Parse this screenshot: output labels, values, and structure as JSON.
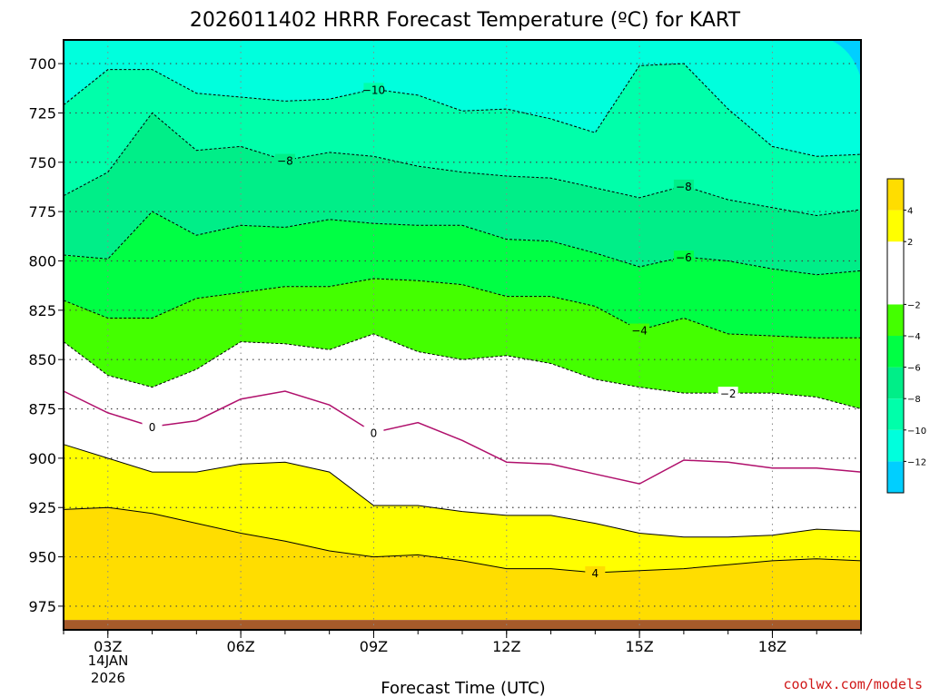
{
  "chart_data": {
    "type": "heatmap",
    "title": "2026011402 HRRR Forecast Temperature (ºC) for KART",
    "xlabel": "Forecast Time (UTC)",
    "credit": "coolwx.com/models",
    "x_range_hours": [
      2,
      20
    ],
    "x_ticks": [
      {
        "hour": 3,
        "label": "03Z"
      },
      {
        "hour": 6,
        "label": "06Z"
      },
      {
        "hour": 9,
        "label": "09Z"
      },
      {
        "hour": 12,
        "label": "12Z"
      },
      {
        "hour": 15,
        "label": "15Z"
      },
      {
        "hour": 18,
        "label": "18Z"
      }
    ],
    "date_label": [
      "14JAN",
      "2026"
    ],
    "y_ticks_hpa": [
      700,
      725,
      750,
      775,
      800,
      825,
      850,
      875,
      900,
      925,
      950,
      975
    ],
    "y_range_hpa": [
      688,
      987
    ],
    "ground_level_hpa": 982,
    "hours": [
      2,
      3,
      4,
      5,
      6,
      7,
      8,
      9,
      10,
      11,
      12,
      13,
      14,
      15,
      16,
      17,
      18,
      19,
      20
    ],
    "contours": [
      {
        "level": 4,
        "style": "solid",
        "color": "#000000",
        "label_at_hour": 14,
        "p": [
          926,
          925,
          928,
          933,
          938,
          942,
          947,
          950,
          949,
          952,
          956,
          956,
          958,
          957,
          956,
          954,
          952,
          951,
          952
        ]
      },
      {
        "level": 2,
        "style": "solid",
        "color": "#000000",
        "p": [
          893,
          900,
          907,
          907,
          903,
          902,
          907,
          924,
          924,
          927,
          929,
          929,
          933,
          938,
          940,
          940,
          939,
          936,
          937
        ]
      },
      {
        "level": 0,
        "style": "solid",
        "color": "#b0106c",
        "label_at_hour": [
          4,
          9
        ],
        "p": [
          866,
          877,
          884,
          881,
          870,
          866,
          873,
          887,
          882,
          891,
          902,
          903,
          908,
          913,
          901,
          902,
          905,
          905,
          907
        ]
      },
      {
        "level": -2,
        "style": "dashed",
        "color": "#000000",
        "label_at_hour": 17,
        "p": [
          841,
          858,
          864,
          855,
          841,
          842,
          845,
          837,
          846,
          850,
          848,
          852,
          860,
          864,
          867,
          867,
          867,
          869,
          875
        ]
      },
      {
        "level": -4,
        "style": "dashed",
        "color": "#000000",
        "label_at_hour": 15,
        "p": [
          820,
          829,
          829,
          819,
          816,
          813,
          813,
          809,
          810,
          812,
          818,
          818,
          823,
          835,
          829,
          837,
          838,
          839,
          839
        ]
      },
      {
        "level": -6,
        "style": "dashed",
        "color": "#000000",
        "label_at_hour": 16,
        "p": [
          797,
          799,
          775,
          787,
          782,
          783,
          779,
          781,
          782,
          782,
          789,
          790,
          796,
          803,
          798,
          800,
          804,
          807,
          805
        ]
      },
      {
        "level": -8,
        "style": "dashed",
        "color": "#000000",
        "label_at_hour": [
          7,
          16
        ],
        "p": [
          767,
          755,
          725,
          744,
          742,
          749,
          745,
          747,
          752,
          755,
          757,
          758,
          763,
          768,
          762,
          769,
          773,
          777,
          774
        ]
      },
      {
        "level": -10,
        "style": "dashed",
        "color": "#000000",
        "label_at_hour": 9,
        "p": [
          721,
          703,
          703,
          715,
          717,
          719,
          718,
          713,
          716,
          724,
          723,
          728,
          735,
          701,
          700,
          723,
          742,
          747,
          746
        ]
      },
      {
        "level": -12,
        "style": "dashed",
        "color": "#000000",
        "p": [
          688,
          688,
          688,
          688,
          688,
          688,
          688,
          688,
          688,
          688,
          688,
          688,
          688,
          688,
          688,
          688,
          688,
          688,
          688
        ]
      }
    ],
    "colorbar": {
      "min": -14,
      "max": 6,
      "bands": [
        {
          "from": -14,
          "to": -12,
          "color": "#00cfff"
        },
        {
          "from": -12,
          "to": -10,
          "color": "#00ffdd"
        },
        {
          "from": -10,
          "to": -8,
          "color": "#00ffaa"
        },
        {
          "from": -8,
          "to": -6,
          "color": "#00ee88"
        },
        {
          "from": -6,
          "to": -4,
          "color": "#00ff44"
        },
        {
          "from": -4,
          "to": -2,
          "color": "#44ff00"
        },
        {
          "from": -2,
          "to": 2,
          "color": "#ffffff"
        },
        {
          "from": 2,
          "to": 4,
          "color": "#ffff00"
        },
        {
          "from": 4,
          "to": 6,
          "color": "#ffdd00"
        }
      ],
      "tick_labels": [
        {
          "value": 4,
          "label": "4"
        },
        {
          "value": 2,
          "label": "2"
        },
        {
          "value": -2,
          "label": "−2"
        },
        {
          "value": -4,
          "label": "−4"
        },
        {
          "value": -6,
          "label": "−6"
        },
        {
          "value": -8,
          "label": "−8"
        },
        {
          "value": -10,
          "label": "−10"
        },
        {
          "value": -12,
          "label": "−12"
        }
      ]
    },
    "grid": true,
    "ground_color": "#a65a2a"
  }
}
